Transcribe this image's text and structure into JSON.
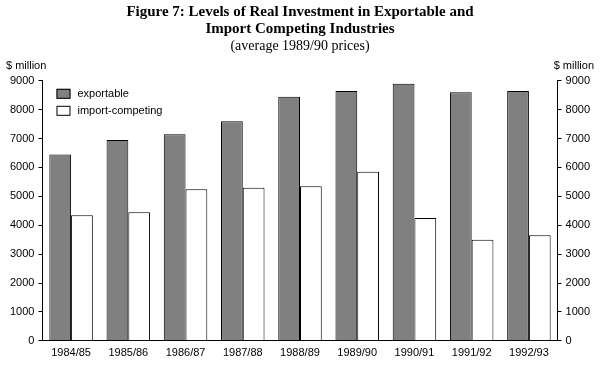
{
  "chart_data": {
    "type": "bar",
    "title": [
      "Figure 7: Levels of Real Investment in Exportable and",
      "Import Competing Industries"
    ],
    "subtitle": "(average 1989/90 prices)",
    "y_label": "$ million",
    "y2_label": "$ million",
    "categories": [
      "1984/85",
      "1985/86",
      "1986/87",
      "1987/88",
      "1988/89",
      "1989/90",
      "1990/91",
      "1991/92",
      "1992/93"
    ],
    "series": [
      {
        "name": "exportable",
        "color": "#808080",
        "values": [
          6450,
          6950,
          7150,
          7600,
          8450,
          8650,
          8900,
          8600,
          8650
        ]
      },
      {
        "name": "import-competing",
        "color": "#ffffff",
        "values": [
          4350,
          4450,
          5250,
          5300,
          5350,
          5850,
          4250,
          3500,
          3650
        ]
      }
    ],
    "ylim": [
      0,
      9000
    ],
    "yticks": [
      0,
      1000,
      2000,
      3000,
      4000,
      5000,
      6000,
      7000,
      8000,
      9000
    ],
    "y2lim": [
      0,
      9000
    ],
    "y2ticks": [
      0,
      1000,
      2000,
      3000,
      4000,
      5000,
      6000,
      7000,
      8000,
      9000
    ],
    "grid": false,
    "legend": "upper left"
  }
}
